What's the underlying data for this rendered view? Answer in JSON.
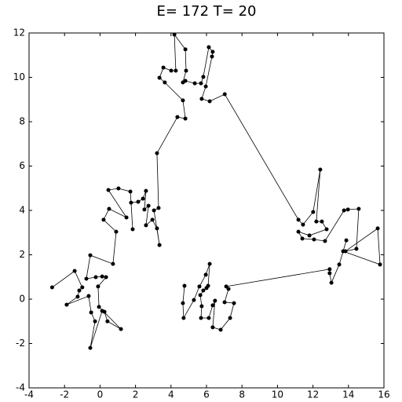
{
  "chart_data": {
    "type": "line",
    "title": "E= 172 T= 20",
    "x": [
      -2.7,
      -1.43,
      -1.0,
      -1.17,
      -1.26,
      -1.88,
      -0.64,
      -0.5,
      -0.28,
      -0.55,
      0.12,
      0.25,
      0.42,
      1.18,
      -0.06,
      -0.11,
      0.34,
      0.12,
      -0.24,
      -0.77,
      -0.55,
      0.73,
      0.91,
      0.2,
      0.51,
      1.49,
      0.47,
      1.04,
      1.71,
      1.84,
      1.75,
      2.15,
      2.42,
      2.59,
      2.5,
      2.73,
      2.59,
      2.95,
      3.21,
      3.35,
      3.04,
      3.3,
      3.21,
      4.36,
      4.81,
      4.67,
      3.65,
      3.35,
      3.57,
      4.01,
      4.27,
      4.19,
      4.81,
      4.85,
      4.67,
      4.81,
      5.34,
      5.69,
      5.82,
      6.13,
      6.35,
      6.31,
      5.96,
      5.73,
      6.18,
      7.03,
      11.18,
      11.44,
      12.01,
      12.41,
      12.19,
      12.5,
      12.77,
      11.8,
      11.18,
      11.4,
      12.06,
      12.68,
      13.75,
      13.97,
      14.58,
      14.45,
      13.83,
      15.65,
      15.78,
      13.7,
      13.88,
      13.48,
      13.04,
      12.94,
      12.94,
      7.11,
      7.24,
      7.02,
      7.55,
      7.33,
      6.8,
      6.35,
      6.48,
      6.35,
      6.13,
      5.69,
      5.73,
      5.65,
      5.82,
      6.0,
      6.09,
      6.18,
      5.96,
      5.6,
      5.29,
      4.71,
      4.67,
      4.76
    ],
    "series": [
      {
        "color": "#000000",
        "values": [
          0.53,
          1.27,
          0.53,
          0.39,
          0.11,
          -0.25,
          0.14,
          -0.6,
          -1.0,
          -2.2,
          -0.53,
          -0.57,
          -1.0,
          -1.35,
          -0.35,
          0.57,
          0.99,
          1.02,
          0.99,
          0.92,
          1.98,
          1.59,
          3.04,
          3.58,
          4.07,
          3.68,
          4.92,
          4.99,
          4.85,
          3.15,
          4.35,
          4.39,
          4.53,
          4.88,
          4.04,
          4.21,
          3.33,
          3.58,
          3.19,
          2.44,
          4.0,
          4.11,
          6.58,
          8.21,
          8.14,
          8.96,
          9.77,
          9.98,
          10.44,
          10.3,
          10.3,
          11.93,
          11.26,
          10.3,
          9.77,
          9.84,
          9.73,
          9.73,
          10.02,
          11.36,
          11.15,
          10.94,
          9.59,
          9.03,
          8.92,
          9.24,
          3.58,
          3.36,
          3.93,
          5.84,
          3.5,
          3.5,
          3.15,
          2.87,
          3.04,
          2.73,
          2.69,
          2.62,
          4.0,
          4.04,
          4.07,
          2.27,
          2.16,
          3.19,
          1.56,
          2.16,
          2.65,
          1.56,
          0.74,
          1.17,
          1.35,
          0.57,
          0.46,
          -0.14,
          -0.18,
          -0.85,
          -1.38,
          -1.27,
          -0.07,
          -0.28,
          -0.85,
          -0.85,
          -0.32,
          0.18,
          0.39,
          0.5,
          0.6,
          1.59,
          1.1,
          0.57,
          -0.04,
          -0.85,
          -0.18,
          0.6
        ]
      }
    ],
    "xlim": [
      -4,
      16
    ],
    "xticks": [
      -4,
      -2,
      0,
      2,
      4,
      6,
      8,
      10,
      12,
      14,
      16
    ],
    "ylim": [
      -4,
      12
    ],
    "yticks": [
      -4,
      -2,
      0,
      2,
      4,
      6,
      8,
      10,
      12
    ],
    "grid": false,
    "markers": true
  }
}
